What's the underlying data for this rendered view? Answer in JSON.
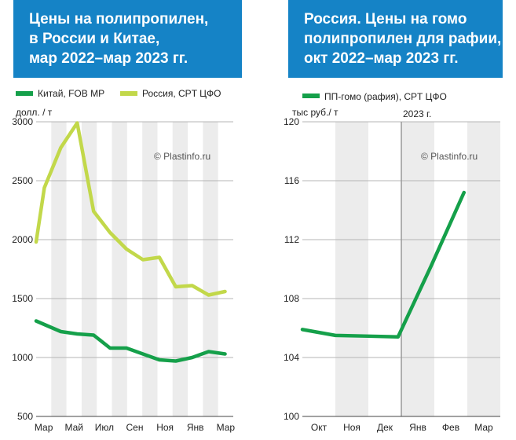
{
  "chart_data": [
    {
      "type": "line",
      "title_lines": [
        "Цены на полипропилен,",
        "в России и Китае,",
        "мар 2022–мар 2023 гг."
      ],
      "ylabel": "долл. / т",
      "watermark": "© Plastinfo.ru",
      "ylim": [
        500,
        3000
      ],
      "yticks": [
        "500",
        "1000",
        "1500",
        "2000",
        "2500",
        "3000"
      ],
      "ytick_values": [
        500,
        1000,
        1500,
        2000,
        2500,
        3000
      ],
      "x_count": 13,
      "xticks": [
        {
          "label": "Мар",
          "i": 0
        },
        {
          "label": "Май",
          "i": 2
        },
        {
          "label": "Июл",
          "i": 4
        },
        {
          "label": "Сен",
          "i": 6
        },
        {
          "label": "Ноя",
          "i": 8
        },
        {
          "label": "Янв",
          "i": 10
        },
        {
          "label": "Мар",
          "i": 12
        }
      ],
      "series": [
        {
          "name": "Китай, FOB MP",
          "color": "#15a04a",
          "points": [
            [
              0,
              1310
            ],
            [
              0.5,
              1280
            ],
            [
              1.5,
              1220
            ],
            [
              2.5,
              1200
            ],
            [
              3.5,
              1190
            ],
            [
              4.5,
              1080
            ],
            [
              5.5,
              1080
            ],
            [
              6.5,
              1030
            ],
            [
              7.5,
              980
            ],
            [
              8.5,
              970
            ],
            [
              9.5,
              1000
            ],
            [
              10.5,
              1050
            ],
            [
              11.5,
              1030
            ]
          ]
        },
        {
          "name": "Россия, CPT ЦФО",
          "color": "#c2d84a",
          "points": [
            [
              0,
              1980
            ],
            [
              0.5,
              2440
            ],
            [
              1.5,
              2780
            ],
            [
              2.5,
              2990
            ],
            [
              3.5,
              2240
            ],
            [
              4.5,
              2060
            ],
            [
              5.5,
              1920
            ],
            [
              6.5,
              1830
            ],
            [
              7.5,
              1850
            ],
            [
              8.5,
              1600
            ],
            [
              9.5,
              1610
            ],
            [
              10.5,
              1530
            ],
            [
              11.5,
              1560
            ]
          ]
        }
      ]
    },
    {
      "type": "line",
      "title_lines": [
        "Россия. Цены на  гомо",
        "полипропилен для рафии,",
        "окт 2022–мар 2023 гг."
      ],
      "ylabel": "тыс руб./ т",
      "watermark": "© Plastinfo.ru",
      "annotation": "2023 г.",
      "ylim": [
        100,
        120
      ],
      "yticks": [
        "100",
        "104",
        "108",
        "112",
        "116",
        "120"
      ],
      "ytick_values": [
        100,
        104,
        108,
        112,
        116,
        120
      ],
      "x_count": 6,
      "xticks": [
        {
          "label": "Окт",
          "i": 0
        },
        {
          "label": "Ноя",
          "i": 1
        },
        {
          "label": "Дек",
          "i": 2
        },
        {
          "label": "Янв",
          "i": 3
        },
        {
          "label": "Фев",
          "i": 4
        },
        {
          "label": "Мар",
          "i": 5
        }
      ],
      "series": [
        {
          "name": "ПП-гомо (рафия), CPT ЦФО",
          "color": "#15a04a",
          "points": [
            [
              0,
              105.9
            ],
            [
              1,
              105.5
            ],
            [
              2,
              105.45
            ],
            [
              2.9,
              105.4
            ],
            [
              3.9,
              110.2
            ],
            [
              4.9,
              115.2
            ]
          ]
        }
      ]
    }
  ]
}
